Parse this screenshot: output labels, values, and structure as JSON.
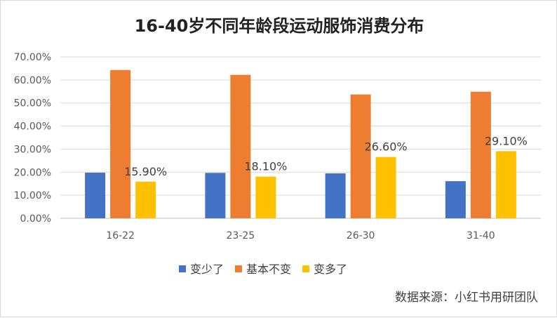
{
  "chart_data": {
    "type": "bar",
    "title": "16-40岁不同年龄段运动服饰消费分布",
    "categories": [
      "16-22",
      "23-25",
      "26-30",
      "31-40"
    ],
    "series": [
      {
        "name": "变少了",
        "color": "#4472C4",
        "values": [
          19.8,
          19.7,
          19.5,
          16.1
        ]
      },
      {
        "name": "基本不变",
        "color": "#ED7D31",
        "values": [
          64.3,
          62.2,
          53.7,
          54.9
        ]
      },
      {
        "name": "变多了",
        "color": "#FFC000",
        "values": [
          15.9,
          18.1,
          26.6,
          29.1
        ],
        "data_labels": [
          "15.90%",
          "18.10%",
          "26.60%",
          "29.10%"
        ]
      }
    ],
    "y_ticks": [
      "0.00%",
      "10.00%",
      "20.00%",
      "30.00%",
      "40.00%",
      "50.00%",
      "60.00%",
      "70.00%"
    ],
    "ylim": [
      0,
      70
    ],
    "grid": true,
    "legend_position": "bottom",
    "source": "数据来源：小红书用研团队"
  }
}
